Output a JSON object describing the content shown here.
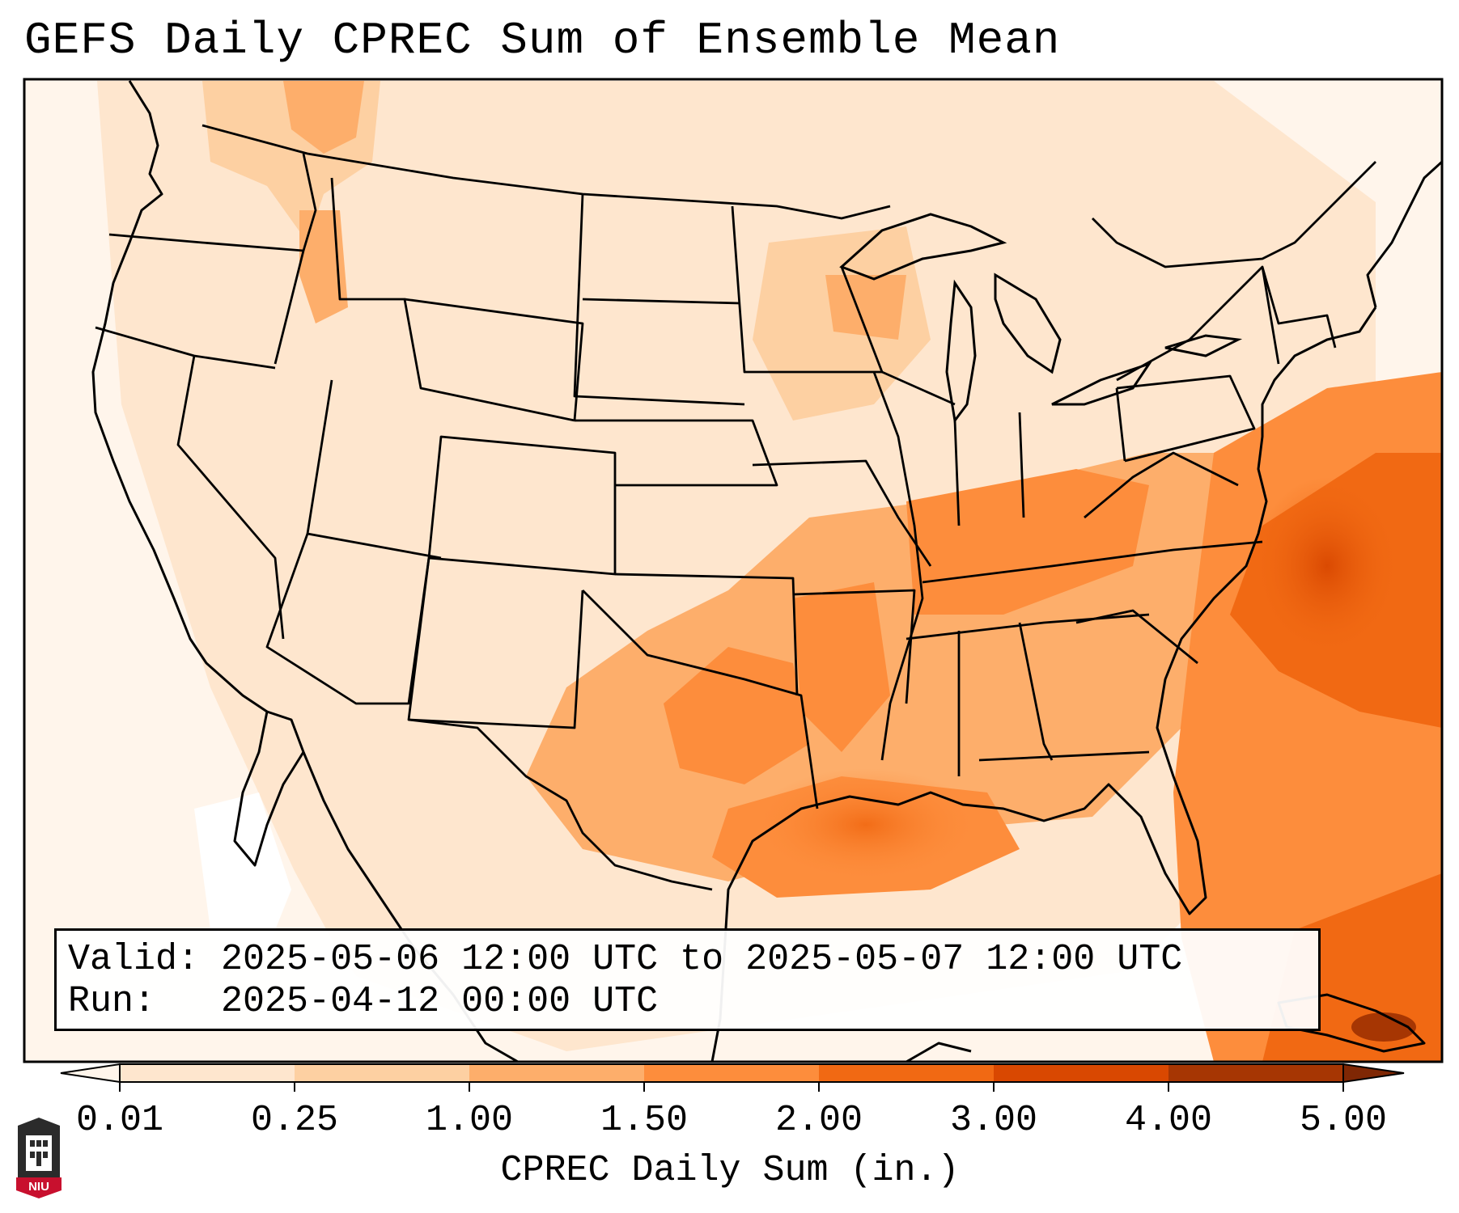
{
  "title": "GEFS Daily CPREC Sum of Ensemble Mean",
  "info": {
    "valid_label": "Valid:",
    "valid_value": "2025-05-06 12:00 UTC to 2025-05-07 12:00 UTC",
    "run_label": "Run:",
    "run_value": "2025-04-12 00:00 UTC"
  },
  "colorbar": {
    "label": "CPREC Daily Sum (in.)",
    "ticks": [
      "0.01",
      "0.25",
      "1.00",
      "1.50",
      "2.00",
      "3.00",
      "4.00",
      "5.00"
    ],
    "colors": [
      "#fff5eb",
      "#fee6ce",
      "#fdd0a2",
      "#fdae6b",
      "#fd8d3c",
      "#f16913",
      "#d94801",
      "#a63603",
      "#7f2704"
    ]
  },
  "logo": {
    "text": "NIU"
  }
}
